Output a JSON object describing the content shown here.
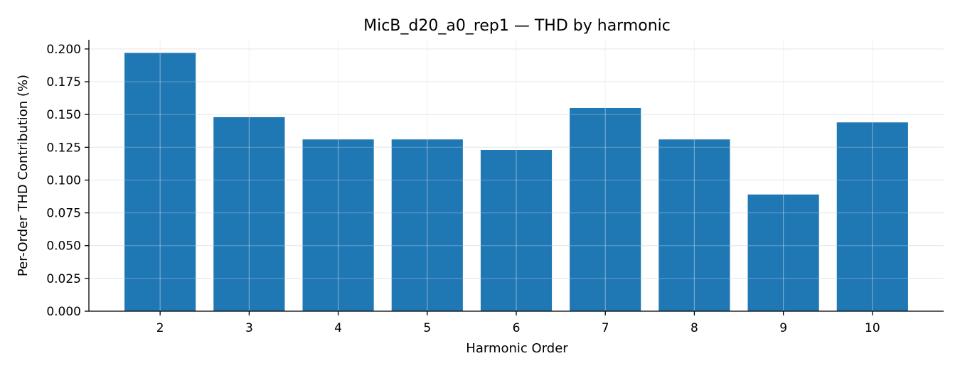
{
  "chart_data": {
    "type": "bar",
    "title": "MicB_d20_a0_rep1 — THD by harmonic",
    "xlabel": "Harmonic Order",
    "ylabel": "Per-Order THD Contribution (%)",
    "categories": [
      "2",
      "3",
      "4",
      "5",
      "6",
      "7",
      "8",
      "9",
      "10"
    ],
    "values": [
      0.197,
      0.148,
      0.131,
      0.131,
      0.123,
      0.155,
      0.131,
      0.089,
      0.144
    ],
    "ylim": [
      0,
      0.207
    ],
    "yticks": [
      0.0,
      0.025,
      0.05,
      0.075,
      0.1,
      0.125,
      0.15,
      0.175,
      0.2
    ],
    "ytick_labels": [
      "0.000",
      "0.025",
      "0.050",
      "0.075",
      "0.100",
      "0.125",
      "0.150",
      "0.175",
      "0.200"
    ],
    "grid": true,
    "bar_color": "#1f77b4",
    "grid_color": "#e6e6e6"
  }
}
